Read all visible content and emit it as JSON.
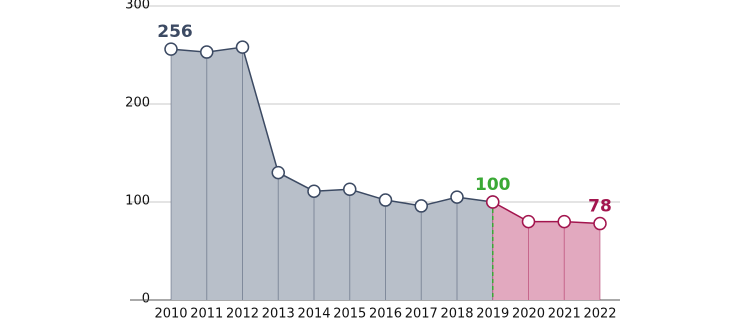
{
  "chart_data": {
    "type": "area",
    "categories": [
      "2010",
      "2011",
      "2012",
      "2013",
      "2014",
      "2015",
      "2016",
      "2017",
      "2018",
      "2019",
      "2020",
      "2021",
      "2022"
    ],
    "series": [
      {
        "color": "#3c4a63",
        "fill": "#b8bfc9",
        "values": [
          256,
          253,
          258,
          130,
          111,
          113,
          102,
          96,
          105,
          100,
          null,
          null,
          null
        ],
        "label_indices": [
          0
        ]
      },
      {
        "color": "#a3154e",
        "fill": "#e2a9bf",
        "values": [
          null,
          null,
          null,
          null,
          null,
          null,
          null,
          null,
          null,
          100,
          80,
          80,
          78
        ],
        "label_indices": [
          9,
          12
        ]
      }
    ],
    "divider": {
      "index": 9,
      "color": "#3aa935"
    },
    "ylim": [
      0,
      300
    ],
    "yticks": [
      0,
      100,
      200,
      300
    ],
    "grid": true
  }
}
